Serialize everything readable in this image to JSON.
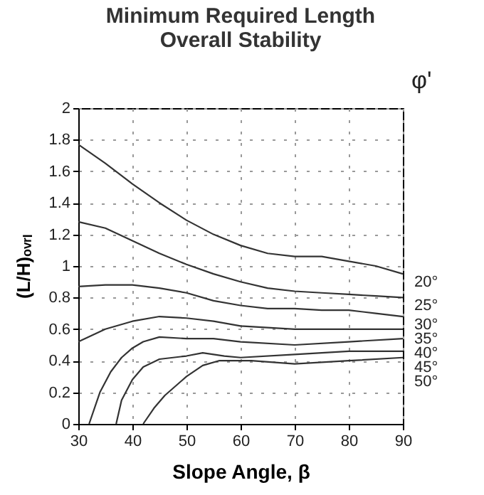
{
  "chart_data": {
    "type": "line",
    "title": "Minimum Required Length\nOverall Stability",
    "xlabel": "Slope Angle, β",
    "ylabel": "(L/H)ₒᵥᵣₗ",
    "legend_title": "φ'",
    "xlim": [
      30,
      90
    ],
    "xticks": [
      30,
      40,
      50,
      60,
      70,
      80,
      90
    ],
    "ylim": [
      0,
      2
    ],
    "yticks": [
      0,
      0.2,
      0.4,
      0.6,
      0.8,
      1,
      1.2,
      1.4,
      1.6,
      1.8,
      2
    ],
    "grid": true,
    "legend": false,
    "series": [
      {
        "name": "20°",
        "color": "#333333",
        "x": [
          30,
          35,
          40,
          45,
          50,
          55,
          60,
          65,
          70,
          75,
          80,
          85,
          90
        ],
        "values": [
          1.77,
          1.65,
          1.52,
          1.4,
          1.29,
          1.2,
          1.13,
          1.08,
          1.06,
          1.06,
          1.03,
          1.0,
          0.95
        ]
      },
      {
        "name": "25°",
        "color": "#333333",
        "x": [
          30,
          35,
          40,
          45,
          50,
          55,
          60,
          65,
          70,
          75,
          80,
          85,
          90
        ],
        "values": [
          1.28,
          1.24,
          1.16,
          1.08,
          1.01,
          0.95,
          0.9,
          0.86,
          0.84,
          0.83,
          0.82,
          0.81,
          0.8
        ]
      },
      {
        "name": "30°",
        "color": "#333333",
        "x": [
          30,
          35,
          40,
          45,
          50,
          55,
          60,
          65,
          70,
          75,
          80,
          85,
          90
        ],
        "values": [
          0.87,
          0.88,
          0.88,
          0.86,
          0.83,
          0.78,
          0.75,
          0.73,
          0.73,
          0.72,
          0.72,
          0.7,
          0.68
        ]
      },
      {
        "name": "35°",
        "color": "#333333",
        "x": [
          30,
          35,
          40,
          45,
          50,
          55,
          60,
          65,
          70,
          80,
          90
        ],
        "values": [
          0.52,
          0.6,
          0.65,
          0.68,
          0.67,
          0.65,
          0.62,
          0.61,
          0.6,
          0.6,
          0.6
        ]
      },
      {
        "name": "40°",
        "color": "#333333",
        "x": [
          32,
          34,
          36,
          38,
          40,
          42,
          45,
          50,
          55,
          60,
          70,
          80,
          90
        ],
        "values": [
          0,
          0.2,
          0.33,
          0.42,
          0.48,
          0.52,
          0.55,
          0.54,
          0.54,
          0.52,
          0.5,
          0.52,
          0.54
        ]
      },
      {
        "name": "45°",
        "color": "#333333",
        "x": [
          37,
          38,
          40,
          42,
          45,
          50,
          53,
          57,
          60,
          70,
          80,
          90
        ],
        "values": [
          0,
          0.15,
          0.28,
          0.36,
          0.41,
          0.43,
          0.45,
          0.43,
          0.42,
          0.44,
          0.46,
          0.46
        ]
      },
      {
        "name": "50°",
        "color": "#333333",
        "x": [
          42,
          44,
          46,
          50,
          53,
          56,
          62,
          66,
          70,
          80,
          90
        ],
        "values": [
          0,
          0.1,
          0.18,
          0.3,
          0.37,
          0.4,
          0.4,
          0.39,
          0.38,
          0.4,
          0.42
        ]
      }
    ]
  }
}
